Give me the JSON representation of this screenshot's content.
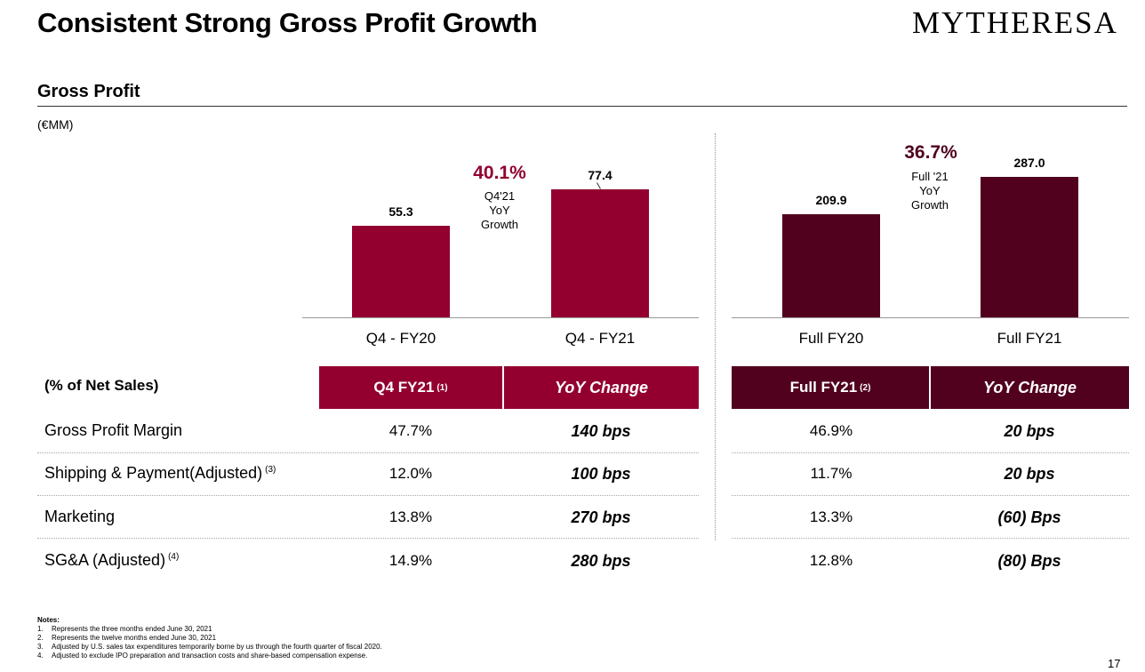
{
  "header": {
    "title": "Consistent Strong Gross Profit Growth",
    "logo": "MYTHERESA"
  },
  "section": {
    "title": "Gross Profit",
    "unit": "(€MM)"
  },
  "chart_data": [
    {
      "type": "bar",
      "categories": [
        "Q4 - FY20",
        "Q4 - FY21"
      ],
      "values": [
        55.3,
        77.4
      ],
      "value_labels": [
        "55.3",
        "77.4"
      ],
      "growth": {
        "value": "40.1%",
        "label_lines": [
          "Q4'21",
          "YoY",
          "Growth"
        ]
      },
      "color": "#930030"
    },
    {
      "type": "bar",
      "categories": [
        "Full FY20",
        "Full FY21"
      ],
      "values": [
        209.9,
        287.0
      ],
      "value_labels": [
        "209.9",
        "287.0"
      ],
      "growth": {
        "value": "36.7%",
        "label_lines": [
          "Full '21",
          "YoY",
          "Growth"
        ]
      },
      "color": "#51001e"
    }
  ],
  "table": {
    "label": "(% of Net Sales)",
    "headers": [
      {
        "text": "Q4 FY21",
        "sup": "(1)"
      },
      {
        "text": "YoY Change",
        "sup": ""
      },
      {
        "text": "Full FY21",
        "sup": "(2)"
      },
      {
        "text": "YoY Change",
        "sup": ""
      }
    ],
    "rows": [
      {
        "label": "Gross Profit Margin",
        "sup": "",
        "q4": "47.7%",
        "q4_change": "140 bps",
        "full": "46.9%",
        "full_change": "20 bps"
      },
      {
        "label": "Shipping & Payment(Adjusted)",
        "sup": "(3)",
        "q4": "12.0%",
        "q4_change": "100 bps",
        "full": "11.7%",
        "full_change": "20 bps"
      },
      {
        "label": "Marketing",
        "sup": "",
        "q4": "13.8%",
        "q4_change": "270 bps",
        "full": "13.3%",
        "full_change": "(60) Bps"
      },
      {
        "label": "SG&A (Adjusted)",
        "sup": "(4)",
        "q4": "14.9%",
        "q4_change": "280 bps",
        "full": "12.8%",
        "full_change": "(80) Bps"
      }
    ]
  },
  "notes": {
    "title": "Notes:",
    "items": [
      {
        "n": "1.",
        "text": "Represents the three months ended June 30, 2021"
      },
      {
        "n": "2.",
        "text": "Represents the twelve months ended June 30, 2021"
      },
      {
        "n": "3.",
        "text": "Adjusted by U.S. sales tax expenditures temporarily borne by us through the fourth quarter of fiscal 2020."
      },
      {
        "n": "4.",
        "text": "Adjusted to exclude IPO preparation and transaction costs and share-based compensation expense."
      }
    ]
  },
  "page_number": "17",
  "colors": {
    "q4_accent": "#930030",
    "full_accent": "#51001e",
    "growth_q4_text": "#930030",
    "growth_full_text": "#51001e"
  }
}
